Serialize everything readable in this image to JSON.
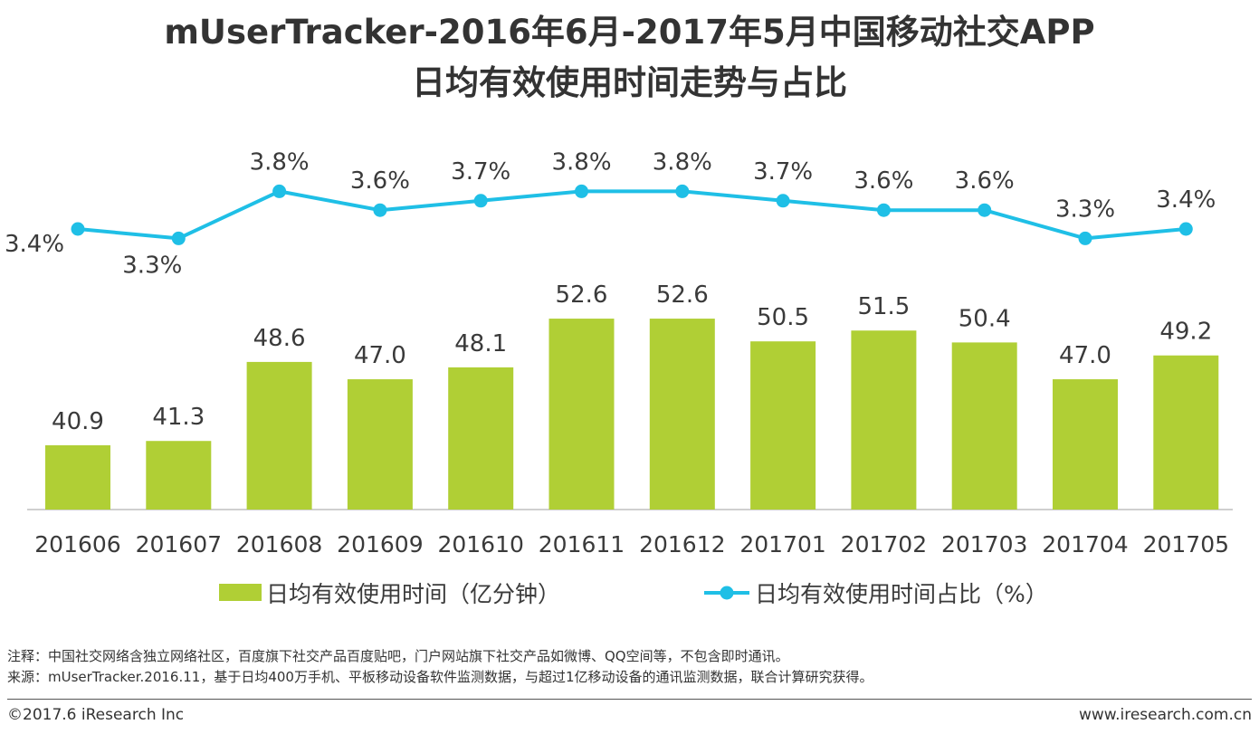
{
  "title_line1": "mUserTracker-2016年6月-2017年5月中国移动社交APP",
  "title_line2": "日均有效使用时间走势与占比",
  "chart_data": {
    "type": "bar+line",
    "categories": [
      "201606",
      "201607",
      "201608",
      "201609",
      "201610",
      "201611",
      "201612",
      "201701",
      "201702",
      "201703",
      "201704",
      "201705"
    ],
    "series": [
      {
        "name": "日均有效使用时间（亿分钟）",
        "type": "bar",
        "values": [
          40.9,
          41.3,
          48.6,
          47.0,
          48.1,
          52.6,
          52.6,
          50.5,
          51.5,
          50.4,
          47.0,
          49.2
        ],
        "labels": [
          "40.9",
          "41.3",
          "48.6",
          "47.0",
          "48.1",
          "52.6",
          "52.6",
          "50.5",
          "51.5",
          "50.4",
          "47.0",
          "49.2"
        ],
        "color": "#b0cf35"
      },
      {
        "name": "日均有效使用时间占比（%）",
        "type": "line",
        "values": [
          3.4,
          3.3,
          3.8,
          3.6,
          3.7,
          3.8,
          3.8,
          3.7,
          3.6,
          3.6,
          3.3,
          3.4
        ],
        "labels": [
          "3.4%",
          "3.3%",
          "3.8%",
          "3.6%",
          "3.7%",
          "3.8%",
          "3.8%",
          "3.7%",
          "3.6%",
          "3.6%",
          "3.3%",
          "3.4%"
        ],
        "color": "#1fbfe6"
      }
    ],
    "legend_position": "bottom"
  },
  "notes": {
    "note1": "注释：中国社交网络含独立网络社区，百度旗下社交产品百度贴吧，门户网站旗下社交产品如微博、QQ空间等，不包含即时通讯。",
    "note2": "来源：mUserTracker.2016.11，基于日均400万手机、平板移动设备软件监测数据，与超过1亿移动设备的通讯监测数据，联合计算研究获得。"
  },
  "footer": {
    "copyright": "©2017.6 iResearch Inc",
    "website": "www.iresearch.com.cn"
  }
}
